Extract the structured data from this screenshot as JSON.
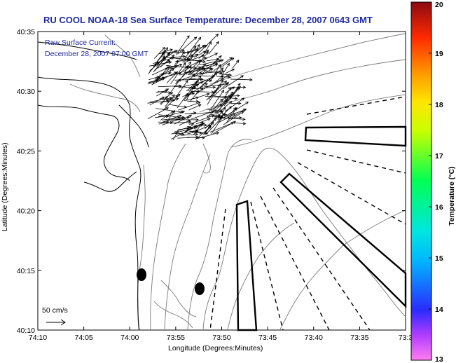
{
  "title": "RU COOL  NOAA-18  Sea Surface Temperature:  December 28, 2007 0643 GMT",
  "current_label": "Raw Surface Current:",
  "current_time": "December 28, 2007 07:00 GMT",
  "scale_label": "50 cm/s",
  "xlabel": "Longitude (Degrees:Minutes)",
  "ylabel": "Latitude (Degrees:Minutes)",
  "x_ticks": [
    "74:10",
    "74:05",
    "74:00",
    "73:55",
    "73:50",
    "73:45",
    "73:40",
    "73:35",
    "73:3"
  ],
  "y_ticks": [
    "40:35",
    "40:30",
    "40:25",
    "40:20",
    "40:15",
    "40:10"
  ],
  "colorbar": {
    "label": "Temperature (°C)",
    "ticks": [
      "20",
      "19",
      "18",
      "17",
      "16",
      "15",
      "14",
      "13"
    ],
    "min": 13,
    "max": 20
  },
  "colors": {
    "title": "#1f2b9c",
    "land": "#ffffff",
    "contour": "#777777",
    "vectors": "#000000"
  }
}
